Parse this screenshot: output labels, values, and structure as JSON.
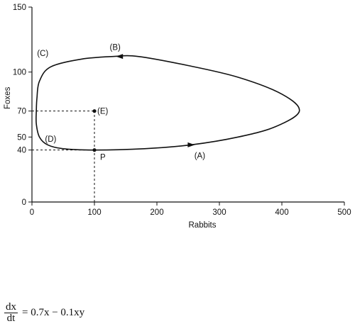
{
  "chart_data": {
    "type": "line",
    "xlabel": "Rabbits",
    "ylabel": "Foxes",
    "xlim": [
      0,
      500
    ],
    "ylim": [
      0,
      150
    ],
    "xticks": [
      "0",
      "100",
      "200",
      "300",
      "400",
      "500"
    ],
    "yticks": [
      "0",
      "40",
      "50",
      "70",
      "100",
      "150"
    ],
    "series": [
      {
        "values": [
          [
            100,
            40
          ],
          [
            180,
            41
          ],
          [
            255,
            44
          ],
          [
            330,
            50
          ],
          [
            390,
            58
          ],
          [
            428,
            70
          ],
          [
            400,
            83
          ],
          [
            330,
            96
          ],
          [
            250,
            105
          ],
          [
            170,
            112
          ],
          [
            130,
            112
          ],
          [
            80,
            110
          ],
          [
            30,
            104
          ],
          [
            12,
            93
          ],
          [
            8,
            80
          ],
          [
            7,
            70
          ],
          [
            7,
            60
          ],
          [
            12,
            50
          ],
          [
            25,
            44
          ],
          [
            50,
            41
          ],
          [
            100,
            40
          ]
        ]
      }
    ],
    "points": [
      {
        "label": "P",
        "x": 100,
        "y": 40
      },
      {
        "label": "(E)",
        "x": 100,
        "y": 70
      }
    ],
    "annotations": [
      "(A)",
      "(B)",
      "(C)",
      "(D)"
    ],
    "arrows": [
      {
        "label": "(A)",
        "x": 255,
        "y": 44,
        "direction": "right"
      },
      {
        "label": "(B)",
        "x": 140,
        "y": 112,
        "direction": "left"
      }
    ],
    "dashed_guides": [
      {
        "from": [
          0,
          70
        ],
        "to": [
          100,
          70
        ]
      },
      {
        "from": [
          100,
          0
        ],
        "to": [
          100,
          70
        ]
      },
      {
        "from": [
          0,
          40
        ],
        "to": [
          100,
          40
        ]
      }
    ]
  },
  "equation": {
    "numerator": "dx",
    "denominator": "dt",
    "rhs": "= 0.7x − 0.1xy"
  }
}
